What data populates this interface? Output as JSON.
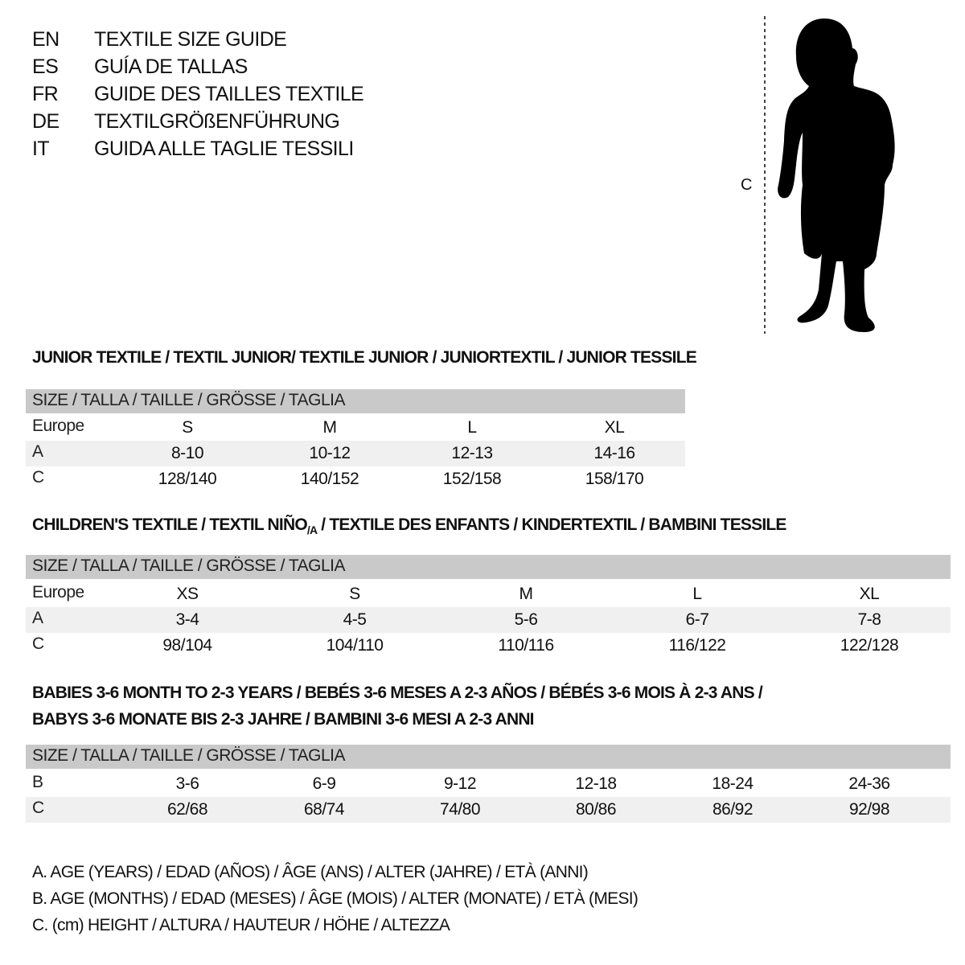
{
  "languages": [
    {
      "code": "EN",
      "title": "TEXTILE SIZE GUIDE"
    },
    {
      "code": "ES",
      "title": "GUÍA DE TALLAS"
    },
    {
      "code": "FR",
      "title": "GUIDE DES TAILLES TEXTILE"
    },
    {
      "code": "DE",
      "title": "TEXTILGRÖßENFÜHRUNG"
    },
    {
      "code": "IT",
      "title": "GUIDA ALLE TAGLIE TESSILI"
    }
  ],
  "figure": {
    "height_label": "C"
  },
  "junior": {
    "heading": "JUNIOR TEXTILE / TEXTIL JUNIOR/ TEXTILE JUNIOR / JUNIORTEXTIL / JUNIOR TESSILE",
    "header": "SIZE / TALLA / TAILLE / GRÖSSE / TAGLIA",
    "rows": [
      {
        "label": "Europe",
        "values": [
          "S",
          "M",
          "L",
          "XL"
        ]
      },
      {
        "label": "A",
        "values": [
          "8-10",
          "10-12",
          "12-13",
          "14-16"
        ]
      },
      {
        "label": "C",
        "values": [
          "128/140",
          "140/152",
          "152/158",
          "158/170"
        ]
      }
    ]
  },
  "children": {
    "heading_a": "CHILDREN'S TEXTILE / TEXTIL NIÑO",
    "heading_sub": "/A",
    "heading_b": " / TEXTILE DES ENFANTS / KINDERTEXTIL / BAMBINI TESSILE",
    "header": "SIZE / TALLA / TAILLE / GRÖSSE / TAGLIA",
    "rows": [
      {
        "label": "Europe",
        "values": [
          "XS",
          "S",
          "M",
          "L",
          "XL"
        ]
      },
      {
        "label": "A",
        "values": [
          "3-4",
          "4-5",
          "5-6",
          "6-7",
          "7-8"
        ]
      },
      {
        "label": "C",
        "values": [
          "98/104",
          "104/110",
          "110/116",
          "116/122",
          "122/128"
        ]
      }
    ]
  },
  "babies": {
    "heading_line1": "BABIES 3-6 MONTH TO 2-3 YEARS / BEBÉS 3-6 MESES A 2-3 AÑOS / BÉBÉS 3-6 MOIS À 2-3 ANS /",
    "heading_line2": "BABYS 3-6 MONATE BIS 2-3 JAHRE / BAMBINI 3-6 MESI A 2-3 ANNI",
    "header": "SIZE / TALLA / TAILLE / GRÖSSE / TAGLIA",
    "rows": [
      {
        "label": "B",
        "values": [
          "3-6",
          "6-9",
          "9-12",
          "12-18",
          "18-24",
          "24-36"
        ]
      },
      {
        "label": "C",
        "values": [
          "62/68",
          "68/74",
          "74/80",
          "80/86",
          "86/92",
          "92/98"
        ]
      }
    ]
  },
  "legend": [
    "A. AGE (YEARS) / EDAD (AÑOS) / ÂGE (ANS) / ALTER (JAHRE) / ETÀ (ANNI)",
    "B. AGE (MONTHS) / EDAD (MESES) / ÂGE (MOIS) / ALTER (MONATE) / ETÀ (MESI)",
    "C. (cm) HEIGHT / ALTURA / HAUTEUR / HÖHE / ALTEZZA"
  ],
  "colors": {
    "header_bg": "#c9c9c9",
    "alt_row_bg": "#f0f0f0",
    "text": "#111111"
  }
}
